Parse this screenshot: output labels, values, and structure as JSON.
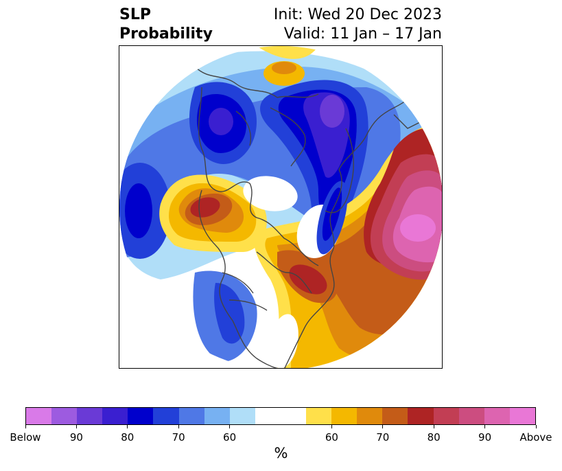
{
  "title": {
    "left_line1": "SLP",
    "left_line2": "Probability",
    "right_line1": "Init: Wed 20 Dec 2023",
    "right_line2": "Valid: 11 Jan – 17 Jan"
  },
  "colorbar": {
    "colors": [
      "#d97ae8",
      "#9d5be0",
      "#6a3ad6",
      "#3a1fd0",
      "#0000cc",
      "#2240d8",
      "#4f78e6",
      "#77b1f2",
      "#b0def8",
      "#ffffff",
      "#ffffff",
      "#ffe04a",
      "#f4b800",
      "#e08a0c",
      "#c45c18",
      "#ae2424",
      "#c23e54",
      "#cc4d80",
      "#dd64b0",
      "#e977d6"
    ],
    "tick_labels": [
      "Below",
      "90",
      "80",
      "70",
      "60",
      "60",
      "70",
      "80",
      "90",
      "Above"
    ],
    "units": "%"
  },
  "map": {
    "colors": {
      "below_light": "#b0def8",
      "below_1": "#77b1f2",
      "below_2": "#4f78e6",
      "below_3": "#2240d8",
      "below_4": "#0000cc",
      "below_5": "#3a1fd0",
      "below_6": "#6a3ad6",
      "above_light": "#ffe04a",
      "above_1": "#f4b800",
      "above_2": "#e08a0c",
      "above_3": "#c45c18",
      "above_4": "#ae2424",
      "above_5": "#c23e54",
      "above_6": "#cc4d80",
      "above_7": "#dd64b0",
      "above_8": "#e977d6",
      "coast": "#444444"
    }
  }
}
